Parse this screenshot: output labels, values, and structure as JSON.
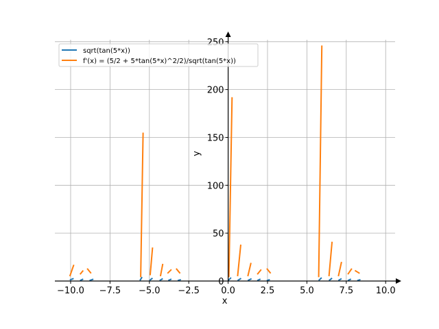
{
  "chart_data": {
    "type": "line",
    "xlabel": "x",
    "ylabel": "y",
    "xlim": [
      -11,
      10.6
    ],
    "ylim": [
      0,
      252
    ],
    "xticks": [
      -10.0,
      -7.5,
      -5.0,
      -2.5,
      0.0,
      2.5,
      5.0,
      7.5,
      10.0
    ],
    "xtick_labels": [
      "−10.0",
      "−7.5",
      "−5.0",
      "−2.5",
      "0.0",
      "2.5",
      "5.0",
      "7.5",
      "10.0"
    ],
    "yticks": [
      0,
      50,
      100,
      150,
      200,
      250
    ],
    "ytick_labels": [
      "0",
      "50",
      "100",
      "150",
      "200",
      "250"
    ],
    "grid": true,
    "legend_position": "top-left",
    "series": [
      {
        "name": "sqrt(tan(5*x))",
        "color": "#1f77b4",
        "style": "dashed",
        "segments": [
          [
            [
              -10.05,
              1
            ],
            [
              -9.75,
              3
            ]
          ],
          [
            [
              -9.4,
              0.5
            ],
            [
              -9.2,
              2
            ]
          ],
          [
            [
              -8.8,
              0.5
            ],
            [
              -8.55,
              2
            ]
          ],
          [
            [
              -5.6,
              0.5
            ],
            [
              -5.45,
              4.5
            ]
          ],
          [
            [
              -5.0,
              0.5
            ],
            [
              -4.8,
              3
            ]
          ],
          [
            [
              -4.35,
              0.5
            ],
            [
              -4.15,
              2.5
            ]
          ],
          [
            [
              -3.8,
              0.5
            ],
            [
              -3.6,
              2
            ]
          ],
          [
            [
              -3.2,
              0.5
            ],
            [
              -3.0,
              1.5
            ]
          ],
          [
            [
              0.0,
              0.5
            ],
            [
              0.25,
              4.5
            ]
          ],
          [
            [
              0.6,
              0.5
            ],
            [
              0.85,
              3
            ]
          ],
          [
            [
              1.25,
              0.5
            ],
            [
              1.5,
              2.5
            ]
          ],
          [
            [
              1.85,
              0.5
            ],
            [
              2.05,
              2
            ]
          ],
          [
            [
              2.45,
              0.5
            ],
            [
              2.65,
              1.5
            ]
          ],
          [
            [
              5.75,
              0.5
            ],
            [
              6.0,
              4.5
            ]
          ],
          [
            [
              6.4,
              0.5
            ],
            [
              6.6,
              3
            ]
          ],
          [
            [
              7.0,
              0.5
            ],
            [
              7.2,
              2.5
            ]
          ],
          [
            [
              7.6,
              0.5
            ],
            [
              7.8,
              2
            ]
          ],
          [
            [
              8.2,
              0.5
            ],
            [
              8.4,
              1.5
            ]
          ]
        ]
      },
      {
        "name": "f'(x) = (5/2 + 5*tan(5*x)^2/2)/sqrt(tan(5*x))",
        "color": "#ff7f0e",
        "style": "solid",
        "segments": [
          [
            [
              -10.05,
              5
            ],
            [
              -9.8,
              17
            ]
          ],
          [
            [
              -9.4,
              7
            ],
            [
              -9.2,
              11
            ]
          ],
          [
            [
              -8.95,
              13
            ],
            [
              -8.7,
              8
            ]
          ],
          [
            [
              -5.55,
              4
            ],
            [
              -5.4,
              155
            ]
          ],
          [
            [
              -4.95,
              6
            ],
            [
              -4.8,
              35
            ]
          ],
          [
            [
              -4.3,
              5
            ],
            [
              -4.15,
              18
            ]
          ],
          [
            [
              -3.85,
              8
            ],
            [
              -3.6,
              12
            ]
          ],
          [
            [
              -3.3,
              13
            ],
            [
              -3.05,
              8
            ]
          ],
          [
            [
              0.05,
              4
            ],
            [
              0.25,
              192
            ]
          ],
          [
            [
              0.6,
              5
            ],
            [
              0.8,
              38
            ]
          ],
          [
            [
              1.25,
              5
            ],
            [
              1.45,
              19
            ]
          ],
          [
            [
              1.85,
              7
            ],
            [
              2.1,
              12
            ]
          ],
          [
            [
              2.45,
              13
            ],
            [
              2.7,
              8
            ]
          ],
          [
            [
              5.75,
              4
            ],
            [
              5.95,
              246
            ]
          ],
          [
            [
              6.4,
              5
            ],
            [
              6.6,
              41
            ]
          ],
          [
            [
              7.0,
              5
            ],
            [
              7.2,
              20
            ]
          ],
          [
            [
              7.6,
              7
            ],
            [
              7.85,
              13
            ]
          ],
          [
            [
              8.05,
              11
            ],
            [
              8.35,
              8
            ]
          ]
        ]
      }
    ]
  }
}
